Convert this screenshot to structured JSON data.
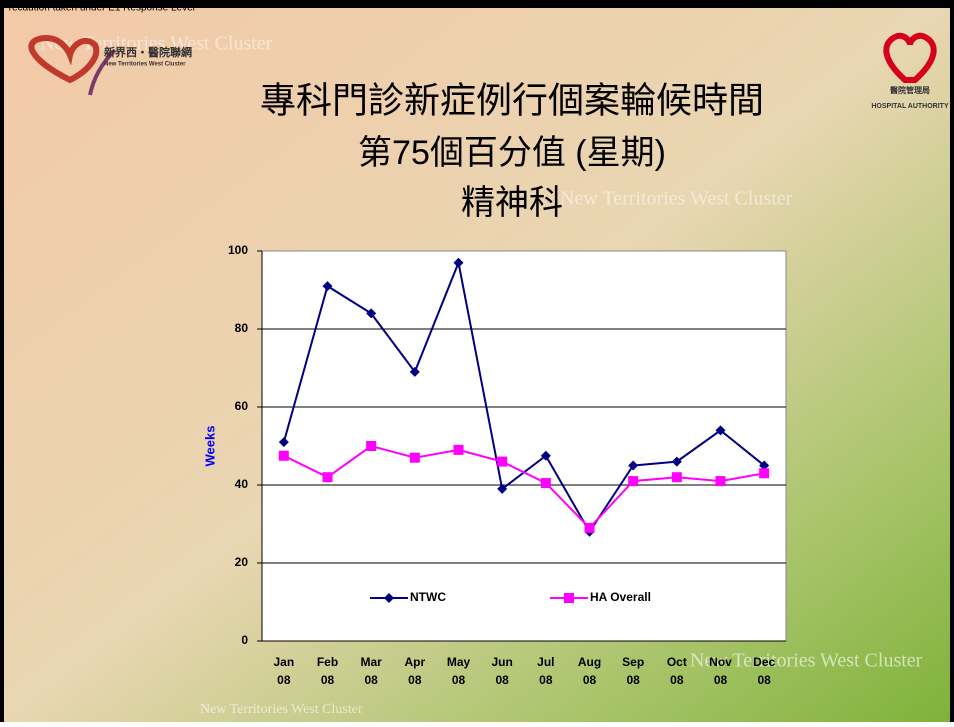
{
  "header": {
    "notice": "Precaution taken under E1 Response Level",
    "left_logo_cn": "新界西‧醫院聯網",
    "left_logo_en": "New Territories West Cluster",
    "right_logo_cn": "醫院管理局",
    "right_logo_en": "HOSPITAL AUTHORITY",
    "watermark": "New Territories West Cluster"
  },
  "chart_data": {
    "type": "line",
    "title": [
      "專科門診新症例行個案輪候時間",
      "第75個百分值 (星期)",
      "精神科"
    ],
    "y_label": "Weeks",
    "categories": [
      "Jan 08",
      "Feb 08",
      "Mar 08",
      "Apr 08",
      "May 08",
      "Jun 08",
      "Jul 08",
      "Aug 08",
      "Sep 08",
      "Oct 08",
      "Nov 08",
      "Dec 08"
    ],
    "series": [
      {
        "name": "NTWC",
        "color": "#000080",
        "marker": "diamond",
        "values": [
          51,
          91,
          84,
          69,
          97,
          39,
          47.5,
          28,
          45,
          46,
          54,
          45
        ]
      },
      {
        "name": "HA Overall",
        "color": "#ff00ff",
        "marker": "square",
        "values": [
          47.5,
          42,
          50,
          47,
          49,
          46,
          40.5,
          29,
          41,
          42,
          41,
          43
        ]
      }
    ],
    "ylim": [
      0,
      100
    ],
    "yticks": [
      0,
      20,
      40,
      60,
      80,
      100
    ],
    "grid": true
  }
}
